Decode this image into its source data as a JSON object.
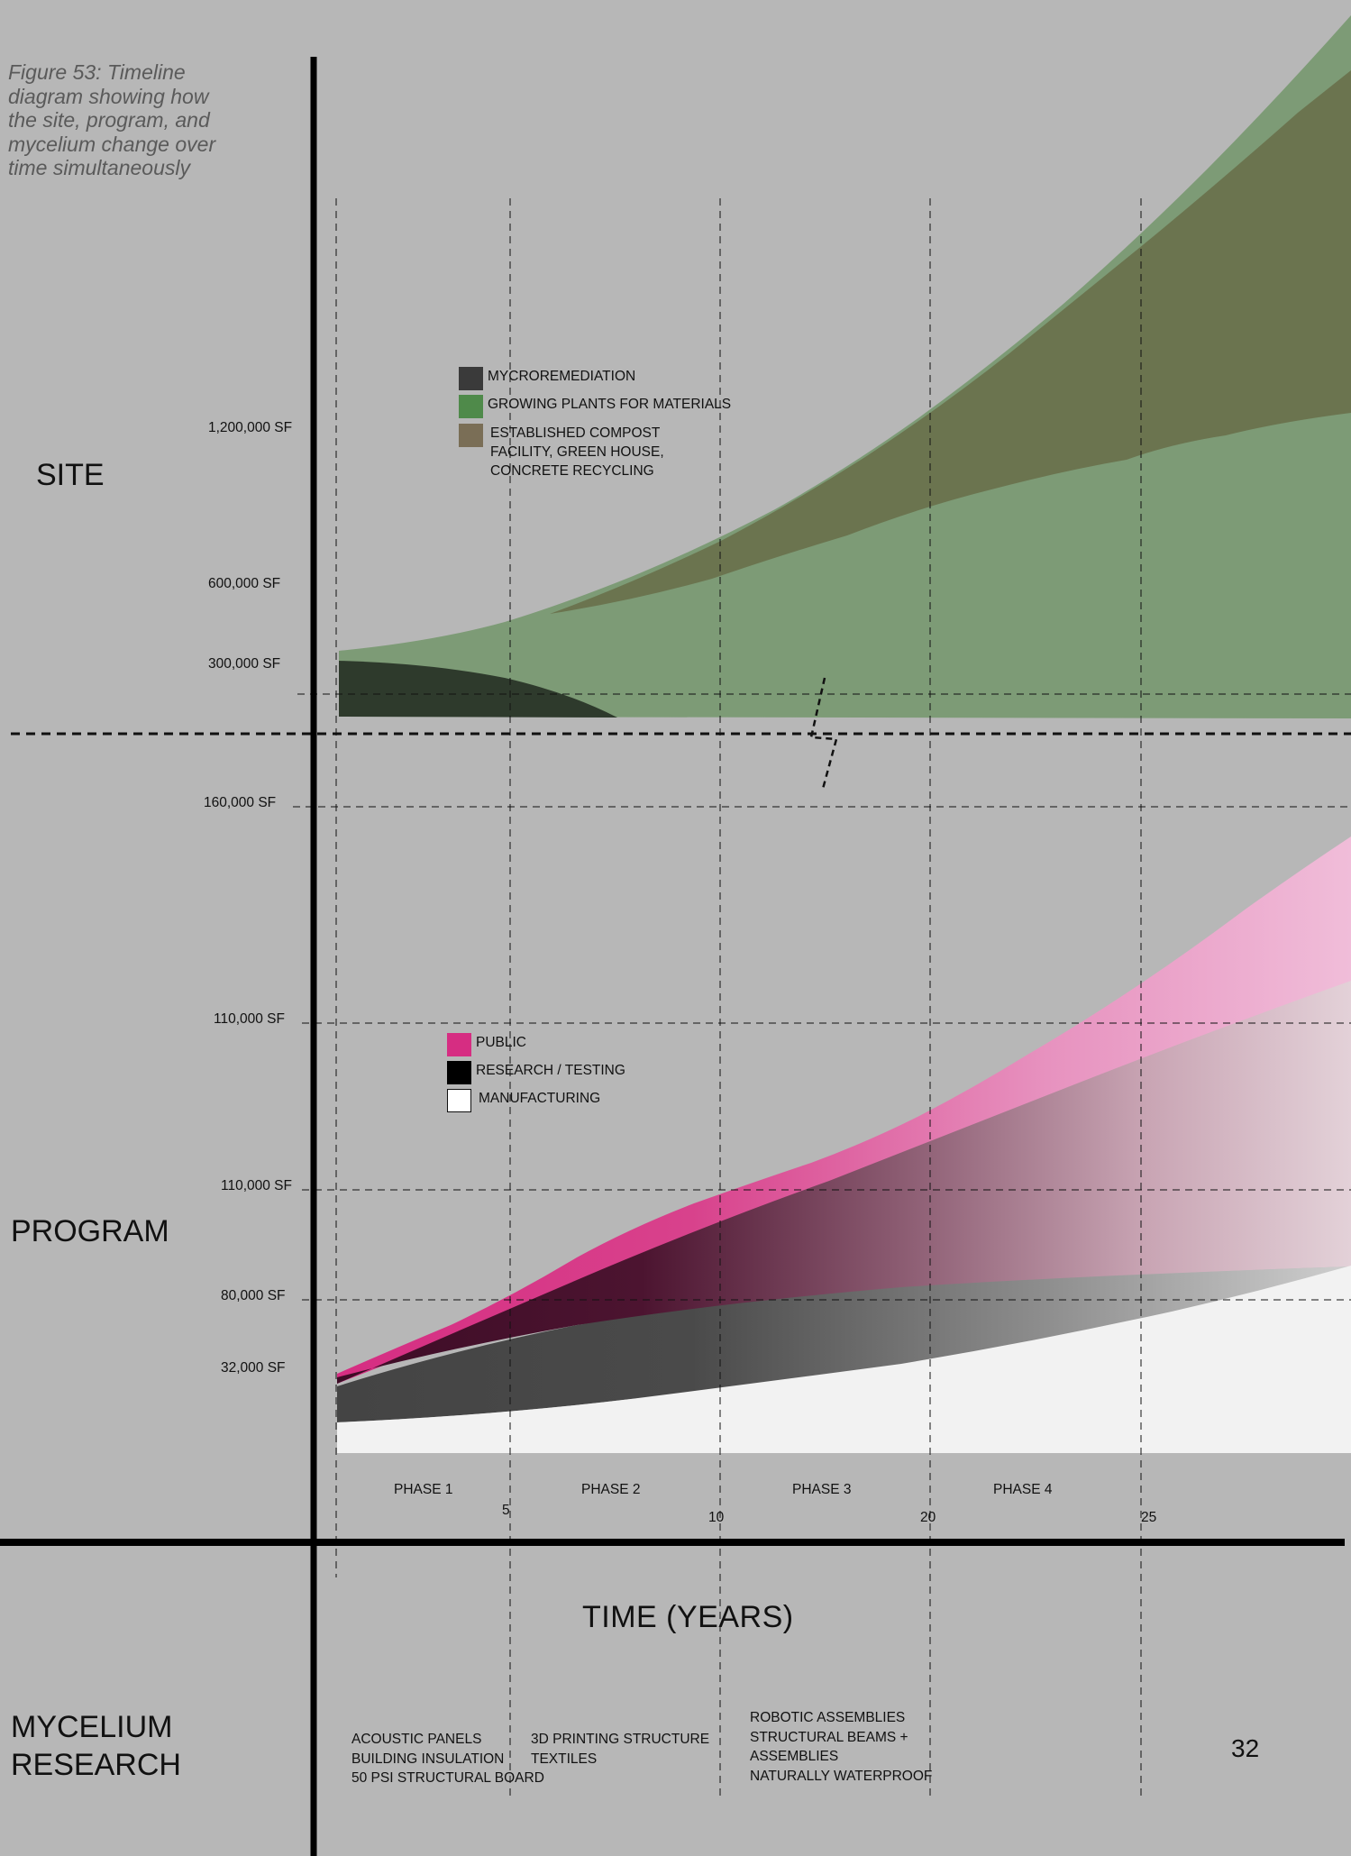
{
  "caption": {
    "lines": [
      "Figure 53:  Timeline",
      "diagram showing how",
      "the site, program, and",
      "mycelium change over",
      "time simultaneously"
    ]
  },
  "sections": {
    "site": "SITE",
    "program": "PROGRAM",
    "research": [
      "MYCELIUM",
      "RESEARCH"
    ]
  },
  "site_axis_labels": [
    "1,200,000 SF",
    "600,000 SF",
    "300,000 SF"
  ],
  "program_axis_labels": [
    "160,000 SF",
    "110,000 SF",
    "110,000 SF",
    "80,000 SF",
    "32,000 SF"
  ],
  "site_legend": [
    {
      "label": [
        "MYCROREMEDIATION"
      ],
      "color": "#3a3a3a"
    },
    {
      "label": [
        "GROWING PLANTS FOR MATERIALS"
      ],
      "color": "#4f8a4a"
    },
    {
      "label": [
        "ESTABLISHED COMPOST",
        "FACILITY, GREEN HOUSE,",
        "CONCRETE RECYCLING"
      ],
      "color": "#7a6e56"
    }
  ],
  "program_legend": [
    {
      "label": "PUBLIC",
      "color": "#d62d82"
    },
    {
      "label": "RESEARCH / TESTING",
      "color": "#000000"
    },
    {
      "label": "MANUFACTURING",
      "color": "#ffffff"
    }
  ],
  "phases": [
    "PHASE 1",
    "PHASE 2",
    "PHASE  3",
    "PHASE  4"
  ],
  "ticks": [
    "5",
    "10",
    "20",
    "25"
  ],
  "x_axis_title": "TIME  (YEARS)",
  "research_columns": [
    [
      "ACOUSTIC PANELS",
      "BUILDING INSULATION",
      "50 PSI STRUCTURAL BOARD"
    ],
    [
      "3D PRINTING STRUCTURE",
      "TEXTILES"
    ],
    [
      "ROBOTIC ASSEMBLIES",
      "STRUCTURAL BEAMS  +",
      "ASSEMBLIES",
      "NATURALLY WATERPROOF"
    ]
  ],
  "page_number": "32",
  "colors": {
    "background": "#b7b7b7",
    "site_green": "#7d9b76",
    "site_olive": "#6b744f",
    "site_dark": "#2e3a2c",
    "public_pink": "#d62d82",
    "research_dark": "#3f0f2a",
    "research_gray": "#444444",
    "manufacturing_white": "#f2f2f2"
  }
}
